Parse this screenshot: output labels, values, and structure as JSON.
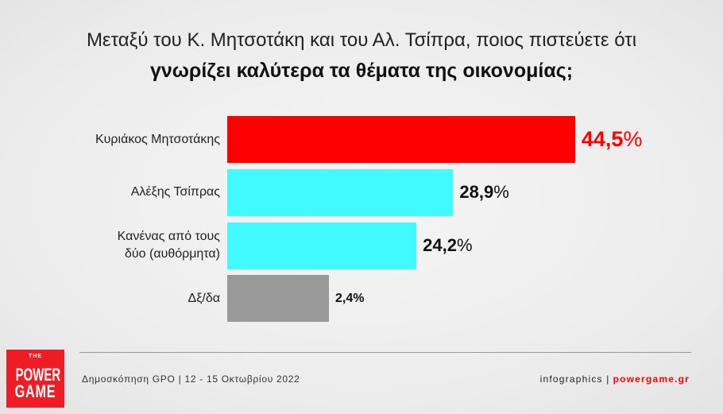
{
  "chart_data": {
    "type": "bar",
    "orientation": "horizontal",
    "title": {
      "line1": "Μεταξύ του Κ. Μητσοτάκη και του Αλ. Τσίπρα, ποιος πιστεύετε ότι",
      "line2": "γνωρίζει καλύτερα τα θέματα της οικονομίας;"
    },
    "categories": [
      "Κυριάκος Μητσοτάκης",
      "Αλέξης Τσίπρας",
      "Κανένας από τους\nδύο (αυθόρμητα)",
      "Δξ/δα"
    ],
    "values": [
      44.5,
      28.9,
      24.2,
      2.4
    ],
    "value_labels": [
      "44,5",
      "28,9",
      "24,2",
      "2,4"
    ],
    "unit": "%",
    "bar_colors": [
      "#ff0000",
      "#40faff",
      "#40faff",
      "#999999"
    ],
    "value_label_colors": [
      "#ff0000",
      "#111111",
      "#111111",
      "#111111"
    ],
    "grid": false,
    "legend": "none"
  },
  "footer": {
    "source": "Δημοσκόπηση GPO | 12 - 15 Οκτωβρίου 2022",
    "credit_label": "infographics |",
    "credit_site": "powergame.gr"
  },
  "logo": {
    "small": "THE",
    "line1": "POWER",
    "line2": "GAME"
  },
  "colors": {
    "accent": "#ff0000",
    "logo": "#ee1d23"
  }
}
